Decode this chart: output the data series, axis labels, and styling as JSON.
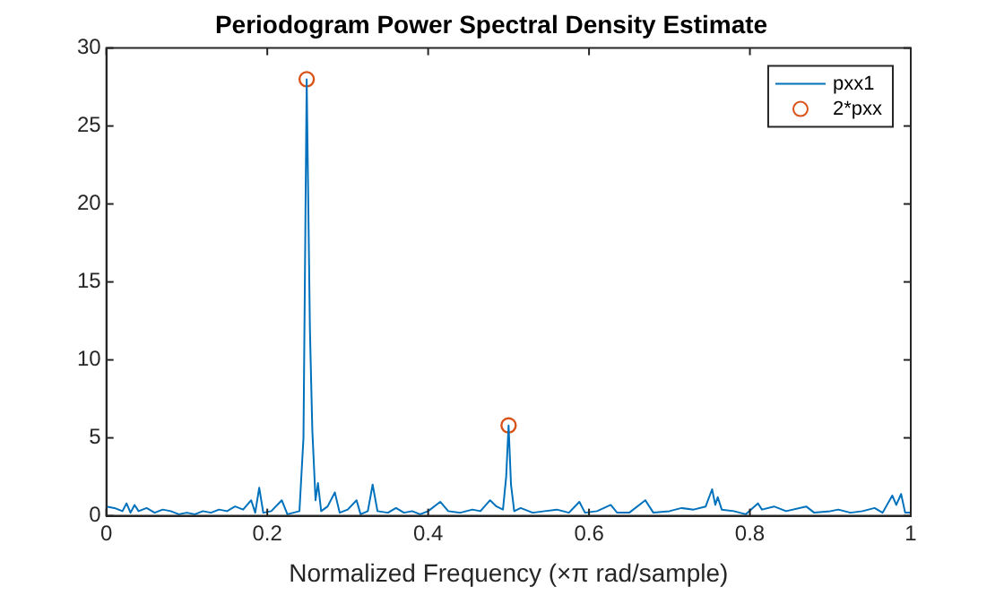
{
  "chart_data": {
    "type": "line",
    "title": "Periodogram Power Spectral Density Estimate",
    "xlabel": "Normalized Frequency (×π rad/sample)",
    "xlim": [
      0,
      1
    ],
    "xticks": [
      0,
      0.2,
      0.4,
      0.6,
      0.8,
      1
    ],
    "ylim": [
      0,
      30
    ],
    "yticks": [
      0,
      5,
      10,
      15,
      20,
      25,
      30
    ],
    "grid": false,
    "legend": "top right",
    "series": [
      {
        "name": "pxx1",
        "type": "line",
        "color": "#0072bd",
        "marker": "none",
        "x": [
          0,
          0.01,
          0.02,
          0.025,
          0.03,
          0.035,
          0.04,
          0.05,
          0.06,
          0.07,
          0.08,
          0.09,
          0.1,
          0.11,
          0.12,
          0.13,
          0.14,
          0.15,
          0.16,
          0.17,
          0.18,
          0.185,
          0.19,
          0.195,
          0.205,
          0.218,
          0.225,
          0.24,
          0.245,
          0.249,
          0.253,
          0.256,
          0.26,
          0.263,
          0.267,
          0.275,
          0.284,
          0.29,
          0.3,
          0.311,
          0.316,
          0.325,
          0.331,
          0.337,
          0.35,
          0.36,
          0.37,
          0.38,
          0.39,
          0.4,
          0.415,
          0.425,
          0.44,
          0.455,
          0.465,
          0.477,
          0.485,
          0.493,
          0.497,
          0.5,
          0.503,
          0.507,
          0.515,
          0.53,
          0.545,
          0.56,
          0.575,
          0.588,
          0.595,
          0.61,
          0.627,
          0.635,
          0.65,
          0.67,
          0.68,
          0.7,
          0.715,
          0.73,
          0.745,
          0.753,
          0.757,
          0.76,
          0.765,
          0.78,
          0.795,
          0.81,
          0.815,
          0.83,
          0.845,
          0.87,
          0.88,
          0.9,
          0.91,
          0.925,
          0.94,
          0.955,
          0.965,
          0.977,
          0.982,
          0.988,
          0.993,
          1
        ],
        "values": [
          0.6,
          0.5,
          0.3,
          0.8,
          0.2,
          0.7,
          0.3,
          0.5,
          0.2,
          0.4,
          0.3,
          0.1,
          0.2,
          0.1,
          0.3,
          0.2,
          0.4,
          0.3,
          0.6,
          0.4,
          1.0,
          0.2,
          1.8,
          0.2,
          0.3,
          1.0,
          0.1,
          0.3,
          5,
          28,
          12,
          5.5,
          1.0,
          2.1,
          0.3,
          0.6,
          1.5,
          0.2,
          0.4,
          1.0,
          0.1,
          0.3,
          2.0,
          0.3,
          0.2,
          0.5,
          0.2,
          0.3,
          0.1,
          0.3,
          0.9,
          0.3,
          0.2,
          0.4,
          0.3,
          1.0,
          0.6,
          0.4,
          2.5,
          5.8,
          2.0,
          0.3,
          0.5,
          0.2,
          0.3,
          0.4,
          0.2,
          0.9,
          0.2,
          0.3,
          0.7,
          0.2,
          0.2,
          1.0,
          0.2,
          0.3,
          0.5,
          0.4,
          0.6,
          1.7,
          0.7,
          1.2,
          0.4,
          0.3,
          0.1,
          0.8,
          0.4,
          0.6,
          0.3,
          0.6,
          0.2,
          0.3,
          0.4,
          0.2,
          0.3,
          0.5,
          0.2,
          1.3,
          0.7,
          1.4,
          0.2,
          0.2
        ]
      },
      {
        "name": "2*pxx",
        "type": "scatter",
        "color": "#d95319",
        "marker": "circle",
        "x": [
          0.249,
          0.5
        ],
        "values": [
          28,
          5.8
        ]
      }
    ]
  }
}
